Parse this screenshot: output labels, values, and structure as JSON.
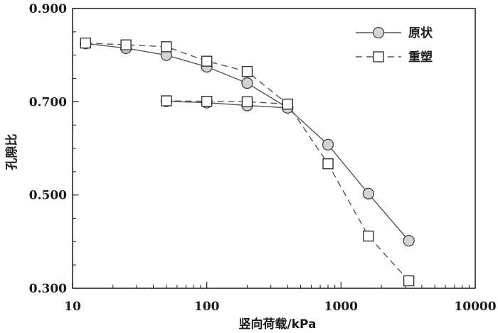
{
  "chart_data": {
    "type": "line",
    "xlabel": "竖向荷载/kPa",
    "ylabel": "孔隙比",
    "xscale": "log",
    "xlim": [
      10,
      10000
    ],
    "ylim": [
      0.3,
      0.9
    ],
    "xticks": [
      10,
      100,
      1000,
      10000
    ],
    "xtick_labels": [
      "10",
      "100",
      "1000",
      "10000"
    ],
    "yticks": [
      0.3,
      0.5,
      0.7,
      0.9
    ],
    "ytick_labels": [
      "0.300",
      "0.500",
      "0.700",
      "0.900"
    ],
    "grid": false,
    "legend_position": "top-right",
    "series": [
      {
        "name": "原状",
        "marker": "circle",
        "line_style": "solid",
        "color": "#555555",
        "marker_fill": "#d3d3d3",
        "segments": [
          [
            {
              "x": 12.5,
              "y": 0.825
            },
            {
              "x": 25,
              "y": 0.815
            },
            {
              "x": 50,
              "y": 0.8
            },
            {
              "x": 100,
              "y": 0.775
            },
            {
              "x": 200,
              "y": 0.74
            },
            {
              "x": 400,
              "y": 0.687
            },
            {
              "x": 800,
              "y": 0.608
            },
            {
              "x": 1600,
              "y": 0.503
            },
            {
              "x": 3200,
              "y": 0.402
            }
          ],
          [
            {
              "x": 400,
              "y": 0.687
            },
            {
              "x": 200,
              "y": 0.692
            },
            {
              "x": 100,
              "y": 0.698
            },
            {
              "x": 50,
              "y": 0.701
            }
          ]
        ]
      },
      {
        "name": "重塑",
        "marker": "square",
        "line_style": "dashed",
        "color": "#555555",
        "marker_fill": "#ffffff",
        "segments": [
          [
            {
              "x": 12.5,
              "y": 0.826
            },
            {
              "x": 25,
              "y": 0.822
            },
            {
              "x": 50,
              "y": 0.818
            },
            {
              "x": 100,
              "y": 0.787
            },
            {
              "x": 200,
              "y": 0.765
            },
            {
              "x": 400,
              "y": 0.695
            },
            {
              "x": 800,
              "y": 0.567
            },
            {
              "x": 1600,
              "y": 0.412
            },
            {
              "x": 3200,
              "y": 0.316
            }
          ],
          [
            {
              "x": 400,
              "y": 0.695
            },
            {
              "x": 200,
              "y": 0.7
            },
            {
              "x": 100,
              "y": 0.701
            },
            {
              "x": 50,
              "y": 0.702
            }
          ]
        ]
      }
    ]
  }
}
